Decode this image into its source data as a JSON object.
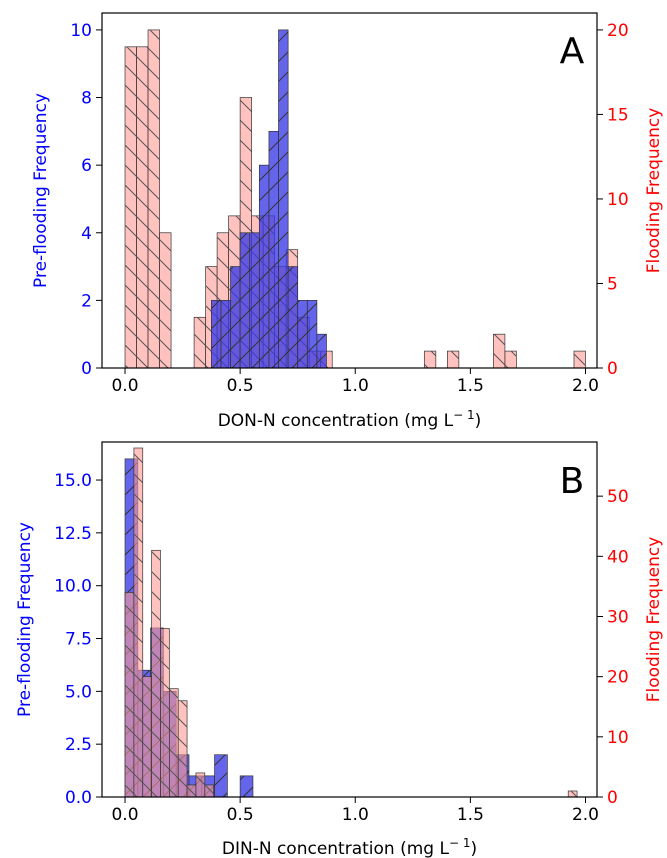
{
  "colors": {
    "pre": "#0000ff",
    "flood": "#ff0000",
    "pre_fill": "#3a3ae6",
    "flood_fill": "#ff9a95",
    "axis": "#000000"
  },
  "chart_data": [
    {
      "type": "bar",
      "panel_label": "A",
      "xlabel": "DON-N concentration (mg L",
      "xlabel_sup": "− 1",
      "xlabel_close": ")",
      "ylabel_left": "Pre-flooding Frequency",
      "ylabel_right": "Flooding Frequency",
      "xlim": [
        -0.1,
        2.05
      ],
      "ylim_left": [
        0,
        10.5
      ],
      "ylim_right": [
        0,
        21
      ],
      "x_ticks": [
        0.0,
        0.5,
        1.0,
        1.5,
        2.0
      ],
      "x_tick_labels": [
        "0.0",
        "0.5",
        "1.0",
        "1.5",
        "2.0"
      ],
      "y_left_ticks": [
        0,
        2,
        4,
        6,
        8,
        10
      ],
      "y_left_tick_labels": [
        "0",
        "2",
        "4",
        "6",
        "8",
        "10"
      ],
      "y_right_ticks": [
        0,
        5,
        10,
        15,
        20
      ],
      "y_right_tick_labels": [
        "0",
        "5",
        "10",
        "15",
        "20"
      ],
      "series": [
        {
          "axis": "right",
          "hatch": "backslash",
          "bin_width": 0.05,
          "bins": [
            {
              "x": 0.0,
              "v": 19
            },
            {
              "x": 0.05,
              "v": 19
            },
            {
              "x": 0.1,
              "v": 20
            },
            {
              "x": 0.15,
              "v": 8
            },
            {
              "x": 0.3,
              "v": 3
            },
            {
              "x": 0.35,
              "v": 6
            },
            {
              "x": 0.4,
              "v": 8
            },
            {
              "x": 0.45,
              "v": 9
            },
            {
              "x": 0.5,
              "v": 16
            },
            {
              "x": 0.55,
              "v": 9
            },
            {
              "x": 0.6,
              "v": 9
            },
            {
              "x": 0.65,
              "v": 6
            },
            {
              "x": 0.7,
              "v": 7
            },
            {
              "x": 0.75,
              "v": 3
            },
            {
              "x": 0.8,
              "v": 1
            },
            {
              "x": 0.85,
              "v": 1
            },
            {
              "x": 1.3,
              "v": 1
            },
            {
              "x": 1.4,
              "v": 1
            },
            {
              "x": 1.6,
              "v": 2
            },
            {
              "x": 1.65,
              "v": 1
            },
            {
              "x": 1.95,
              "v": 1
            }
          ]
        },
        {
          "axis": "left",
          "hatch": "slash",
          "bin_width": 0.0417,
          "bins": [
            {
              "x": 0.375,
              "v": 2
            },
            {
              "x": 0.4167,
              "v": 2
            },
            {
              "x": 0.4583,
              "v": 3
            },
            {
              "x": 0.5,
              "v": 4
            },
            {
              "x": 0.5417,
              "v": 4
            },
            {
              "x": 0.5833,
              "v": 6
            },
            {
              "x": 0.625,
              "v": 7
            },
            {
              "x": 0.6667,
              "v": 10
            },
            {
              "x": 0.7083,
              "v": 3
            },
            {
              "x": 0.75,
              "v": 2
            },
            {
              "x": 0.7917,
              "v": 2
            },
            {
              "x": 0.8333,
              "v": 1
            }
          ]
        }
      ]
    },
    {
      "type": "bar",
      "panel_label": "B",
      "xlabel": "DIN-N concentration (mg L",
      "xlabel_sup": "− 1",
      "xlabel_close": ")",
      "ylabel_left": "Pre-flooding Frequency",
      "ylabel_right": "Flooding Frequency",
      "xlim": [
        -0.1,
        2.05
      ],
      "ylim_left": [
        0,
        16.8
      ],
      "ylim_right": [
        0,
        59
      ],
      "x_ticks": [
        0.0,
        0.5,
        1.0,
        1.5,
        2.0
      ],
      "x_tick_labels": [
        "0.0",
        "0.5",
        "1.0",
        "1.5",
        "2.0"
      ],
      "y_left_ticks": [
        0,
        2.5,
        5.0,
        7.5,
        10.0,
        12.5,
        15.0
      ],
      "y_left_tick_labels": [
        "0.0",
        "2.5",
        "5.0",
        "7.5",
        "10.0",
        "12.5",
        "15.0"
      ],
      "y_right_ticks": [
        0,
        10,
        20,
        30,
        40,
        50
      ],
      "y_right_tick_labels": [
        "0",
        "10",
        "20",
        "30",
        "40",
        "50"
      ],
      "series": [
        {
          "axis": "left",
          "hatch": "slash",
          "bin_width": 0.0556,
          "bins": [
            {
              "x": 0.0,
              "v": 16
            },
            {
              "x": 0.0556,
              "v": 6
            },
            {
              "x": 0.1111,
              "v": 8
            },
            {
              "x": 0.1667,
              "v": 5
            },
            {
              "x": 0.2222,
              "v": 2
            },
            {
              "x": 0.2778,
              "v": 1
            },
            {
              "x": 0.3333,
              "v": 1
            },
            {
              "x": 0.3889,
              "v": 2
            },
            {
              "x": 0.5,
              "v": 1
            }
          ]
        },
        {
          "axis": "right",
          "hatch": "backslash",
          "bin_width": 0.0385,
          "bins": [
            {
              "x": 0.0,
              "v": 34
            },
            {
              "x": 0.0385,
              "v": 58
            },
            {
              "x": 0.077,
              "v": 20
            },
            {
              "x": 0.1155,
              "v": 41
            },
            {
              "x": 0.154,
              "v": 28
            },
            {
              "x": 0.1925,
              "v": 18
            },
            {
              "x": 0.231,
              "v": 16
            },
            {
              "x": 0.2695,
              "v": 2
            },
            {
              "x": 0.308,
              "v": 4
            },
            {
              "x": 0.3465,
              "v": 2
            },
            {
              "x": 1.925,
              "v": 1
            }
          ]
        }
      ]
    }
  ]
}
